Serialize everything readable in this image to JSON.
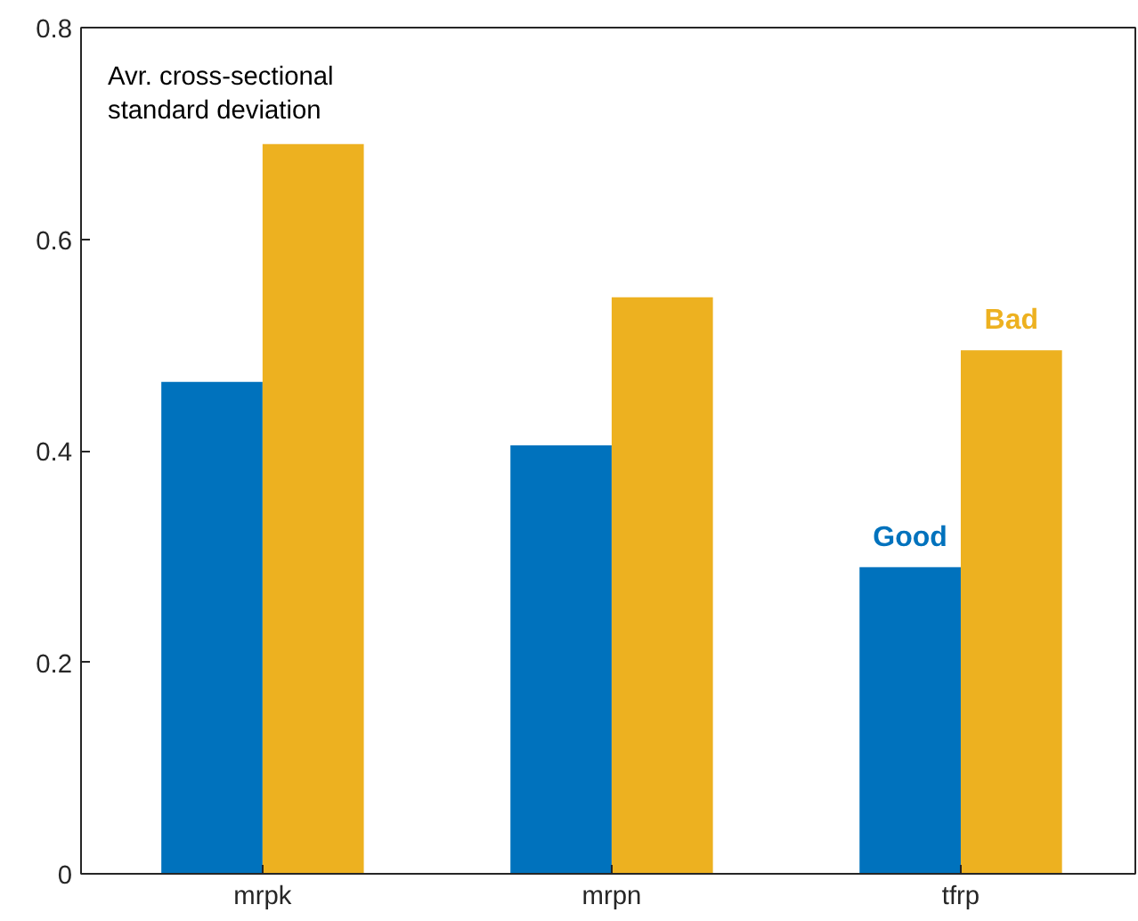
{
  "chart_data": {
    "type": "bar",
    "categories": [
      "mrpk",
      "mrpn",
      "tfrp"
    ],
    "series": [
      {
        "name": "Good",
        "color": "#0072bd",
        "values": [
          0.465,
          0.405,
          0.29
        ]
      },
      {
        "name": "Bad",
        "color": "#edb120",
        "values": [
          0.69,
          0.545,
          0.495
        ]
      }
    ],
    "ylim": [
      0,
      0.8
    ],
    "yticks": [
      0,
      0.2,
      0.4,
      0.6,
      0.8
    ],
    "grid": false,
    "legend": false,
    "annotations": [
      "Avr. cross-sectional\nstandard deviation"
    ]
  }
}
